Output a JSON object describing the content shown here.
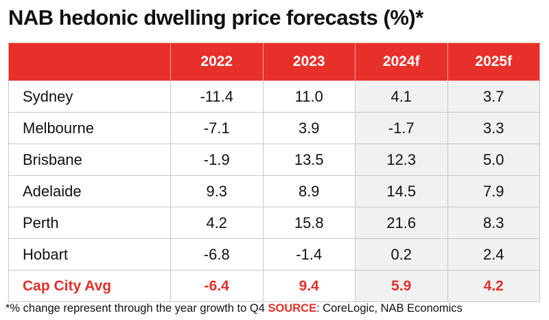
{
  "chart_data": {
    "type": "table",
    "title": "NAB hedonic dwelling price forecasts (%)*",
    "columns": [
      "2022",
      "2023",
      "2024f",
      "2025f"
    ],
    "rows": [
      {
        "city": "Sydney",
        "values": [
          "-11.4",
          "11.0",
          "4.1",
          "3.7"
        ]
      },
      {
        "city": "Melbourne",
        "values": [
          "-7.1",
          "3.9",
          "-1.7",
          "3.3"
        ]
      },
      {
        "city": "Brisbane",
        "values": [
          "-1.9",
          "13.5",
          "12.3",
          "5.0"
        ]
      },
      {
        "city": "Adelaide",
        "values": [
          "9.3",
          "8.9",
          "14.5",
          "7.9"
        ]
      },
      {
        "city": "Perth",
        "values": [
          "4.2",
          "15.8",
          "21.6",
          "8.3"
        ]
      },
      {
        "city": "Hobart",
        "values": [
          "-6.8",
          "-1.4",
          "0.2",
          "2.4"
        ]
      }
    ],
    "average": {
      "city": "Cap City Avg",
      "values": [
        "-6.4",
        "9.4",
        "5.9",
        "4.2"
      ]
    },
    "footnote": {
      "text": "*% change represent through the year growth to Q4 ",
      "source_label": "SOURCE",
      "source_text": ": CoreLogic, NAB Economics"
    }
  },
  "colors": {
    "header_bg": "#e8302a",
    "highlight_text": "#e0302a",
    "forecast_shade": "#f1f1f1"
  }
}
